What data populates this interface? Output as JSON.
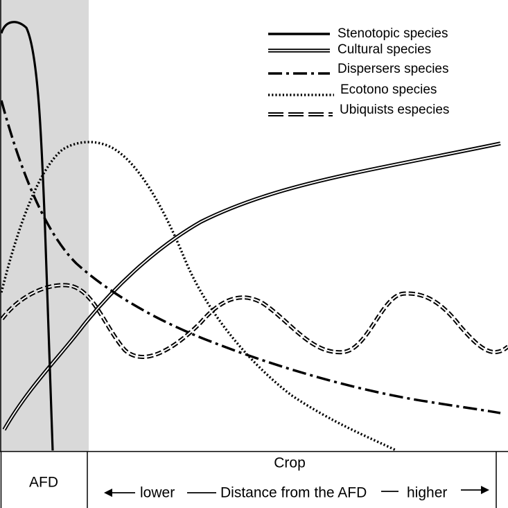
{
  "legend": {
    "stenotopic": "Stenotopic species",
    "cultural": "Cultural species",
    "dispersers": "Dispersers species",
    "ecotono": "Ecotono species",
    "ubiquists": "Ubiquists especies"
  },
  "axis": {
    "zone_label": "AFD",
    "crop_label": "Crop",
    "lower_label": "lower",
    "distance_label": "Distance from the AFD",
    "higher_label": "higher"
  },
  "colors": {
    "afd_zone": "#d9d9d9",
    "line": "#000000"
  }
}
